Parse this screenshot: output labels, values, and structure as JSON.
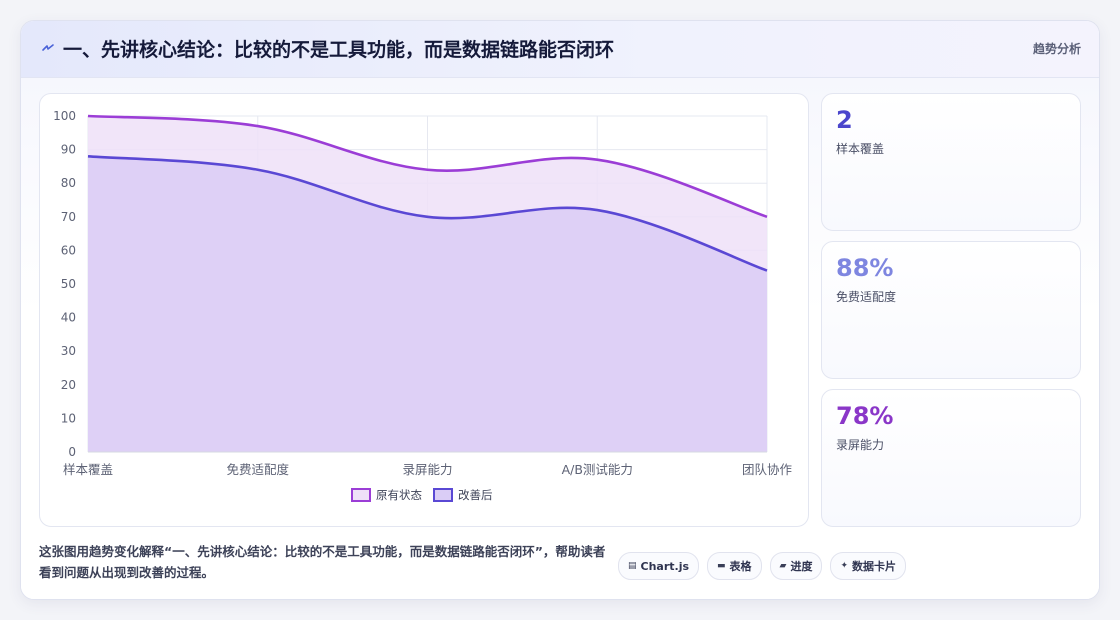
{
  "header": {
    "icon": "lightning-icon",
    "title": "一、先讲核心结论：比较的不是工具功能，而是数据链路能否闭环",
    "tag": "趋势分析"
  },
  "stats": [
    {
      "value": "2",
      "label": "样本覆盖",
      "color": "#4b46cc"
    },
    {
      "value": "88%",
      "label": "免费适配度",
      "color": "#7e86e0"
    },
    {
      "value": "78%",
      "label": "录屏能力",
      "color": "#8a36c8"
    }
  ],
  "caption": "这张图用趋势变化解释“一、先讲核心结论：比较的不是工具功能，而是数据链路能否闭环”，帮助读者看到问题从出现到改善的过程。",
  "chips": [
    {
      "icon": "chart-icon",
      "glyph": "▤",
      "label": "Chart.js"
    },
    {
      "icon": "table-icon",
      "glyph": "▬",
      "label": "表格"
    },
    {
      "icon": "progress-icon",
      "glyph": "▰",
      "label": "进度"
    },
    {
      "icon": "sparkle-icon",
      "glyph": "✦",
      "label": "数据卡片"
    }
  ],
  "chart_data": {
    "type": "area",
    "categories": [
      "样本覆盖",
      "免费适配度",
      "录屏能力",
      "A/B测试能力",
      "团队协作"
    ],
    "series": [
      {
        "name": "原有状态",
        "values": [
          100,
          97,
          84,
          87,
          70
        ],
        "color": "#9b3dd6",
        "fill": "#efe0f8"
      },
      {
        "name": "改善后",
        "values": [
          88,
          84,
          70,
          72,
          54
        ],
        "color": "#5a48d4",
        "fill": "#dacdf6"
      }
    ],
    "ylim": [
      0,
      100
    ],
    "yticks": [
      0,
      10,
      20,
      30,
      40,
      50,
      60,
      70,
      80,
      90,
      100
    ],
    "grid": true,
    "legend": "bottom"
  }
}
